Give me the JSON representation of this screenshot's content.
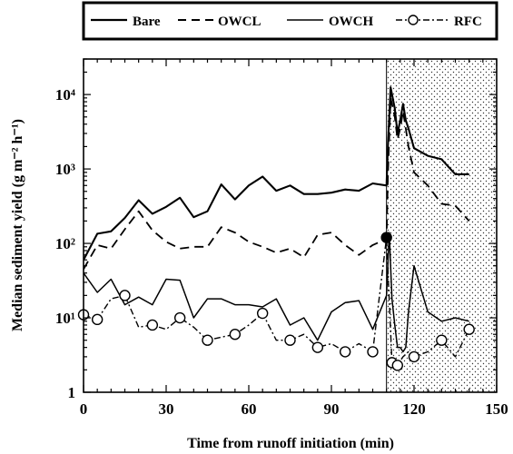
{
  "chart_data": {
    "type": "line",
    "xlabel": "Time from runoff initiation (min)",
    "ylabel": "Median sediment yield (g m⁻² h⁻¹)",
    "xlim": [
      0,
      150
    ],
    "ylim": [
      1,
      30000
    ],
    "yscale": "log",
    "x_ticks": [
      0,
      30,
      60,
      90,
      120,
      150
    ],
    "x_tick_labels": [
      "0",
      "30",
      "60",
      "90",
      "120",
      "150"
    ],
    "y_ticks": [
      1,
      10,
      100,
      1000,
      10000
    ],
    "y_tick_labels": [
      "1",
      "10¹",
      "10²",
      "10³",
      "10⁴"
    ],
    "grid": false,
    "legend": {
      "placement": "top",
      "entries": [
        "Bare",
        "OWCL",
        "OWCH",
        "RFC"
      ]
    },
    "shaded_region": {
      "x_start": 110,
      "x_end": 150,
      "pattern": "stippled"
    },
    "series": [
      {
        "name": "Bare",
        "style": "solid-thick",
        "x": [
          0,
          5,
          10,
          15,
          20,
          25,
          30,
          35,
          40,
          45,
          50,
          55,
          60,
          65,
          70,
          75,
          80,
          85,
          90,
          95,
          100,
          105,
          110,
          110.5,
          111.5,
          113,
          114,
          115,
          116,
          117,
          118,
          120,
          125,
          130,
          135,
          140
        ],
        "values": [
          60,
          135,
          145,
          220,
          380,
          250,
          310,
          410,
          225,
          270,
          620,
          390,
          600,
          790,
          510,
          600,
          460,
          460,
          480,
          530,
          510,
          640,
          600,
          2000,
          12500,
          6500,
          3000,
          4500,
          7500,
          4500,
          3500,
          1900,
          1500,
          1350,
          850,
          850
        ]
      },
      {
        "name": "OWCL",
        "style": "dashed",
        "x": [
          0,
          5,
          10,
          15,
          20,
          25,
          30,
          35,
          40,
          45,
          50,
          55,
          60,
          65,
          70,
          75,
          80,
          85,
          90,
          95,
          100,
          105,
          110,
          110.5,
          111.5,
          113,
          114,
          115,
          116,
          117,
          118,
          120,
          125,
          130,
          135,
          140
        ],
        "values": [
          45,
          95,
          85,
          155,
          270,
          150,
          105,
          85,
          90,
          90,
          165,
          140,
          105,
          90,
          75,
          85,
          65,
          130,
          140,
          95,
          70,
          95,
          115,
          800,
          9000,
          5000,
          2500,
          3500,
          6000,
          3500,
          2000,
          900,
          600,
          340,
          320,
          200
        ]
      },
      {
        "name": "OWCH",
        "style": "solid-thin",
        "x": [
          0,
          5,
          10,
          15,
          20,
          25,
          30,
          35,
          40,
          45,
          50,
          55,
          60,
          65,
          70,
          75,
          80,
          85,
          90,
          95,
          100,
          105,
          110,
          111,
          112,
          113,
          114,
          115,
          116,
          117,
          118,
          120,
          125,
          130,
          135,
          140
        ],
        "values": [
          40,
          22,
          33,
          15,
          19,
          15,
          33,
          32,
          10,
          18,
          18,
          15,
          15,
          14,
          18,
          8,
          10,
          5,
          12,
          16,
          17,
          7,
          20,
          140,
          18,
          8,
          4,
          4,
          3.5,
          4,
          12,
          50,
          12,
          9,
          10,
          9
        ]
      },
      {
        "name": "RFC",
        "style": "dash-dot-circles",
        "x": [
          0,
          5,
          10,
          15,
          20,
          25,
          30,
          35,
          40,
          45,
          50,
          55,
          60,
          65,
          70,
          75,
          80,
          85,
          90,
          95,
          100,
          105,
          110,
          112,
          114,
          116,
          118,
          120,
          125,
          130,
          135,
          140
        ],
        "values": [
          11,
          9.5,
          18,
          20,
          7.5,
          8,
          7,
          10,
          7.5,
          5,
          5.5,
          6,
          8,
          11.5,
          5,
          5,
          6,
          4,
          4.5,
          3.5,
          4.5,
          3.5,
          120,
          2.5,
          2.3,
          3,
          3.5,
          3,
          3.5,
          5,
          3,
          7
        ],
        "markers_at": [
          0,
          5,
          15,
          25,
          35,
          45,
          55,
          65,
          75,
          85,
          95,
          105,
          110,
          112,
          114,
          120,
          130,
          140
        ],
        "filled_marker_at": 110
      }
    ]
  }
}
